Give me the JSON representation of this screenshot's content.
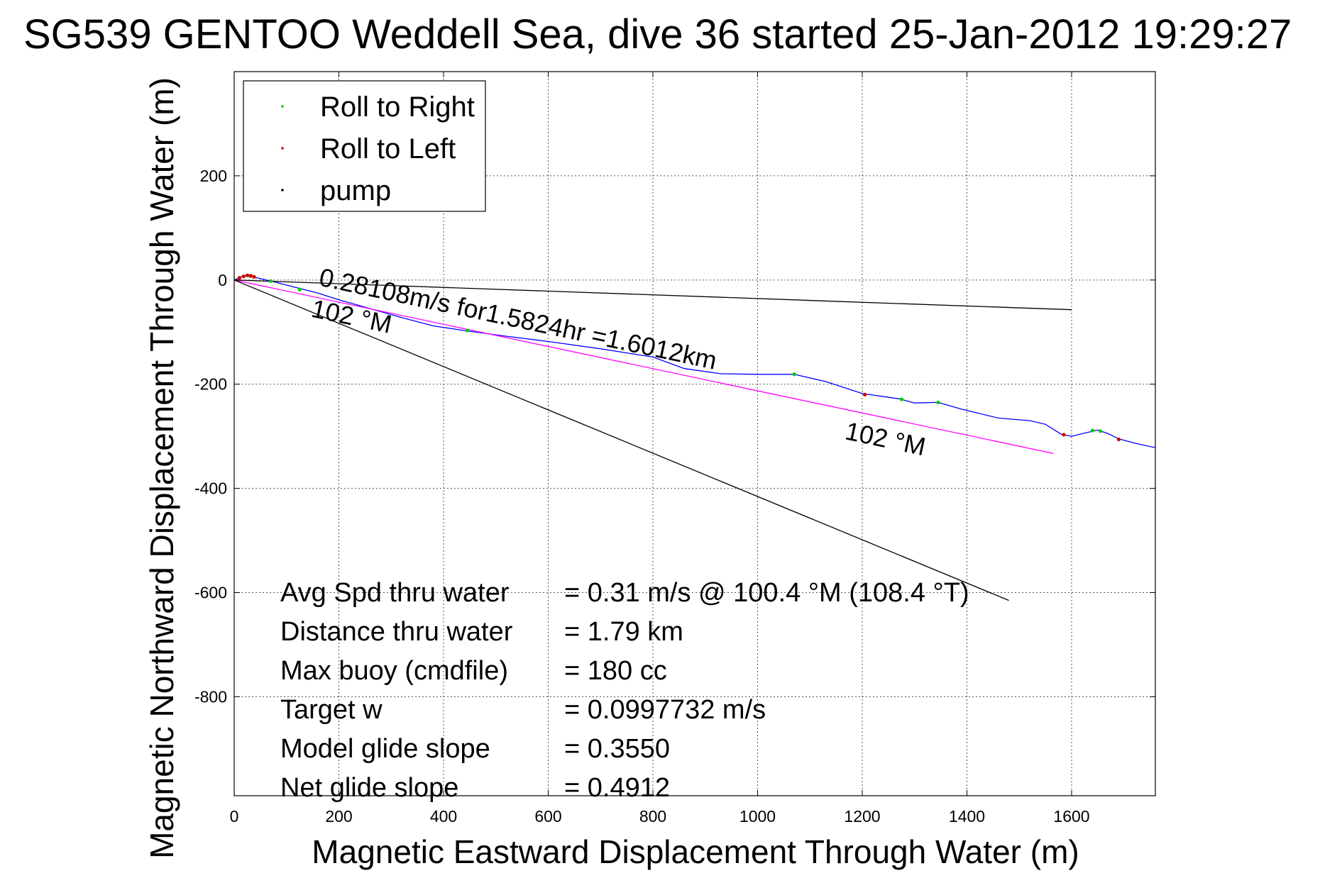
{
  "chart_data": {
    "type": "line",
    "title": "SG539 GENTOO Weddell Sea, dive 36 started 25-Jan-2012 19:29:27",
    "xlabel": "Magnetic Eastward Displacement Through Water (m)",
    "ylabel": "Magnetic Northward Displacement Through Water (m)",
    "xlim": [
      0,
      1760
    ],
    "ylim": [
      -990,
      400
    ],
    "xticks": [
      0,
      200,
      400,
      600,
      800,
      1000,
      1200,
      1400,
      1600
    ],
    "yticks": [
      200,
      0,
      -200,
      -400,
      -600,
      -800
    ],
    "grid": true,
    "legend": {
      "position": "top-left",
      "entries": [
        {
          "label": "Roll to Right",
          "color": "#00cc00"
        },
        {
          "label": "Roll to Left",
          "color": "#cc0000"
        },
        {
          "label": "pump",
          "color": "#000000"
        }
      ]
    },
    "series": [
      {
        "color": "#0000ff",
        "points": [
          [
            0,
            0
          ],
          [
            12,
            5
          ],
          [
            25,
            8
          ],
          [
            40,
            5
          ],
          [
            70,
            -2
          ],
          [
            120,
            -15
          ],
          [
            160,
            -25
          ],
          [
            200,
            -38
          ],
          [
            260,
            -55
          ],
          [
            320,
            -72
          ],
          [
            380,
            -88
          ],
          [
            440,
            -97
          ],
          [
            520,
            -108
          ],
          [
            600,
            -118
          ],
          [
            700,
            -132
          ],
          [
            800,
            -148
          ],
          [
            860,
            -170
          ],
          [
            930,
            -180
          ],
          [
            1000,
            -181
          ],
          [
            1070,
            -181
          ],
          [
            1130,
            -195
          ],
          [
            1200,
            -218
          ],
          [
            1270,
            -228
          ],
          [
            1300,
            -236
          ],
          [
            1345,
            -235
          ],
          [
            1390,
            -248
          ],
          [
            1460,
            -265
          ],
          [
            1520,
            -270
          ],
          [
            1550,
            -277
          ],
          [
            1580,
            -296
          ],
          [
            1600,
            -300
          ],
          [
            1620,
            -295
          ],
          [
            1650,
            -288
          ],
          [
            1670,
            -295
          ],
          [
            1690,
            -305
          ],
          [
            1720,
            -313
          ],
          [
            1760,
            -322
          ]
        ]
      },
      {
        "color": "#ff00ff",
        "points": [
          [
            0,
            0
          ],
          [
            1565,
            -333
          ]
        ]
      },
      {
        "color": "#000000",
        "points": [
          [
            0,
            0
          ],
          [
            1600,
            -57
          ]
        ]
      },
      {
        "color": "#000000",
        "points": [
          [
            0,
            0
          ],
          [
            1480,
            -615
          ]
        ]
      }
    ],
    "roll_right_points": [
      [
        30,
        8
      ],
      [
        70,
        -2
      ],
      [
        125,
        -18
      ],
      [
        445,
        -97
      ],
      [
        1070,
        -181
      ],
      [
        1275,
        -229
      ],
      [
        1345,
        -235
      ],
      [
        1640,
        -289
      ],
      [
        1655,
        -290
      ]
    ],
    "roll_left_points": [
      [
        10,
        4
      ],
      [
        18,
        7
      ],
      [
        25,
        9
      ],
      [
        32,
        8
      ],
      [
        38,
        6
      ],
      [
        1205,
        -220
      ],
      [
        1585,
        -297
      ],
      [
        1690,
        -306
      ]
    ],
    "annotations": [
      {
        "text": "0.28108m/s for1.5824hr =1.6012km",
        "x": 160,
        "y": -10,
        "angle": 12
      },
      {
        "text": "102 °M",
        "x": 145,
        "y": -70,
        "angle": 12
      },
      {
        "text": "102 °M",
        "x": 1165,
        "y": -305,
        "angle": 12
      }
    ],
    "stats": [
      {
        "label": "Avg Spd thru water",
        "value": "=  0.31 m/s @ 100.4 °M (108.4 °T)"
      },
      {
        "label": "Distance thru water",
        "value": "=  1.79 km"
      },
      {
        "label": "Max buoy (cmdfile)",
        "value": "= 180 cc"
      },
      {
        "label": "Target w",
        "value": "= 0.0997732 m/s"
      },
      {
        "label": "Model glide slope",
        "value": "= 0.3550"
      },
      {
        "label": "Net glide slope",
        "value": "= 0.4912"
      }
    ]
  }
}
